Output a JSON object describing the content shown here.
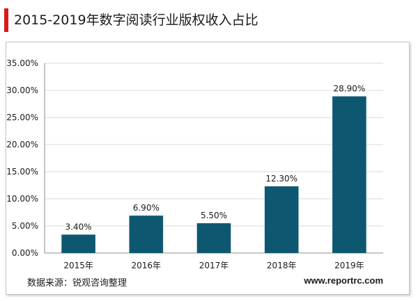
{
  "header": {
    "title": "2015-2019年数字阅读行业版权收入占比"
  },
  "chart_data": {
    "type": "bar",
    "categories": [
      "2015年",
      "2016年",
      "2017年",
      "2018年",
      "2019年"
    ],
    "values": [
      3.4,
      6.9,
      5.5,
      12.3,
      28.9
    ],
    "value_labels": [
      "3.40%",
      "6.90%",
      "5.50%",
      "12.30%",
      "28.90%"
    ],
    "ylim": [
      0,
      35
    ],
    "yticks": [
      0,
      5,
      10,
      15,
      20,
      25,
      30,
      35
    ],
    "ytick_labels": [
      "0.00%",
      "5.00%",
      "10.00%",
      "15.00%",
      "20.00%",
      "25.00%",
      "30.00%",
      "35.00%"
    ],
    "grid": true,
    "bar_color": "#0d5870",
    "grid_color": "#d9d9d9",
    "legend": "none"
  },
  "footer": {
    "source": "数据来源：锐观咨询整理",
    "site": "www.reportrc.com"
  },
  "colors": {
    "accent": "#d71a1a"
  }
}
